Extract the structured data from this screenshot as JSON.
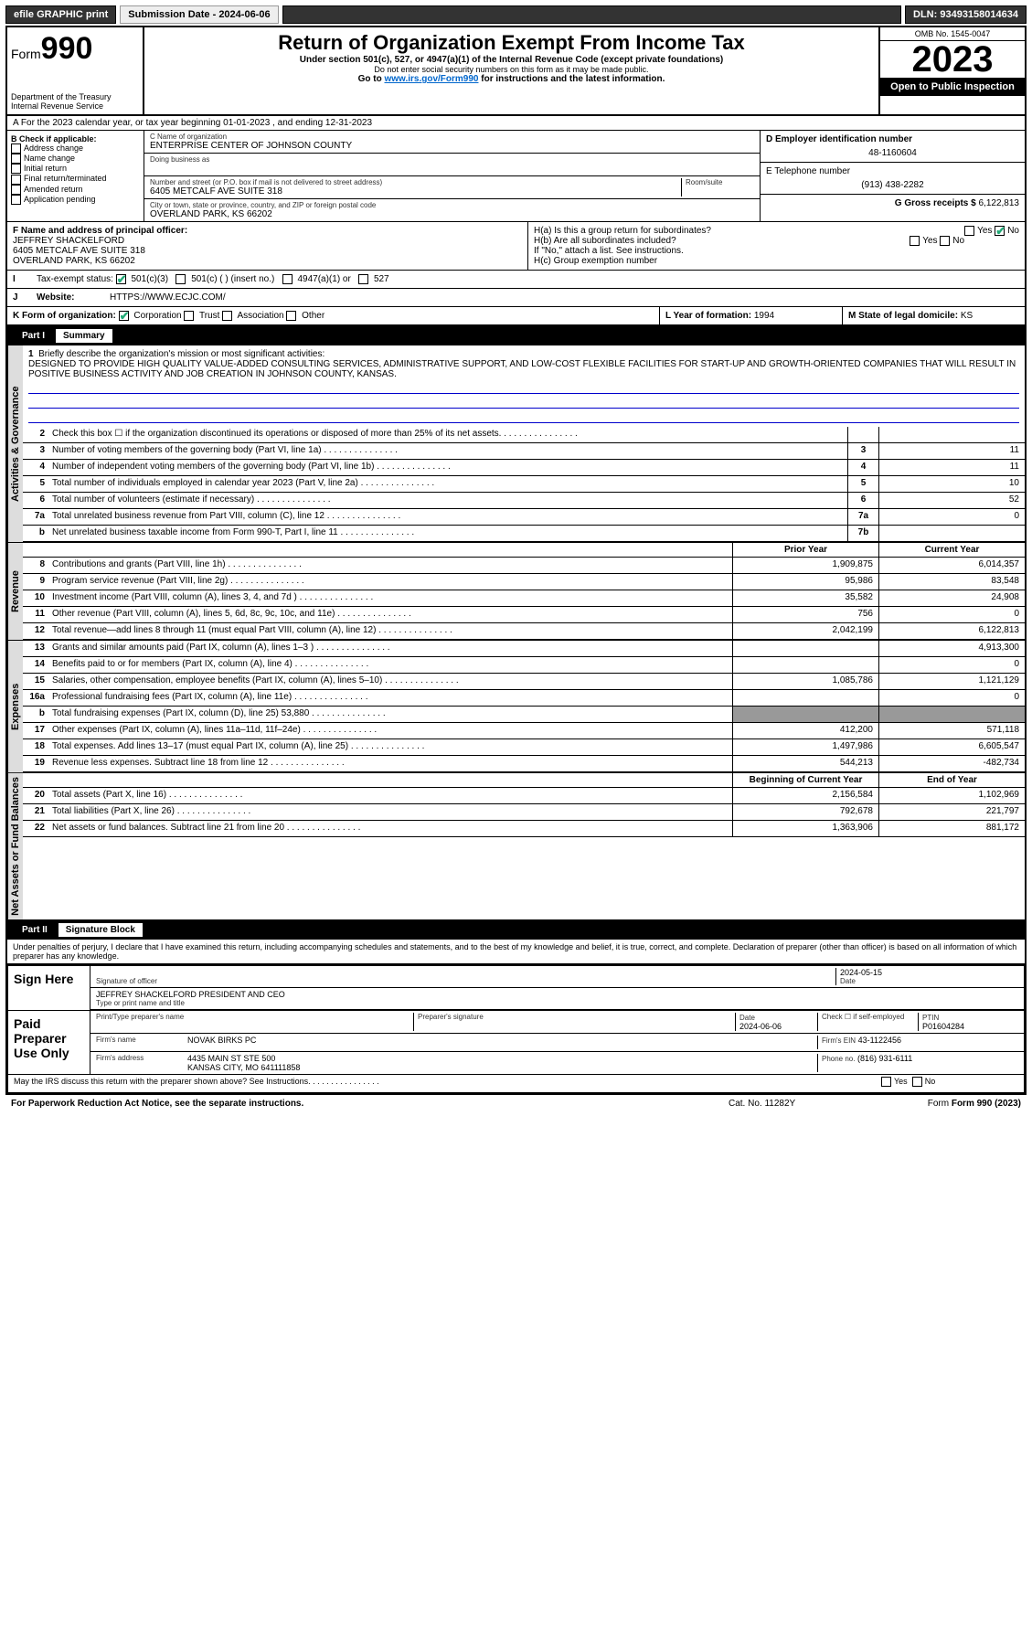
{
  "topbar": {
    "efile": "efile GRAPHIC print",
    "submission_label": "Submission Date - 2024-06-06",
    "dln": "DLN: 93493158014634"
  },
  "header": {
    "form_word": "Form",
    "form_num": "990",
    "dept": "Department of the Treasury",
    "irs": "Internal Revenue Service",
    "title": "Return of Organization Exempt From Income Tax",
    "sub1": "Under section 501(c), 527, or 4947(a)(1) of the Internal Revenue Code (except private foundations)",
    "sub2": "Do not enter social security numbers on this form as it may be made public.",
    "sub3_pre": "Go to ",
    "sub3_link": "www.irs.gov/Form990",
    "sub3_post": " for instructions and the latest information.",
    "omb": "OMB No. 1545-0047",
    "year": "2023",
    "open": "Open to Public Inspection"
  },
  "row_a": "A For the 2023 calendar year, or tax year beginning 01-01-2023    , and ending 12-31-2023",
  "box_b": {
    "label": "B Check if applicable:",
    "opts": [
      "Address change",
      "Name change",
      "Initial return",
      "Final return/terminated",
      "Amended return",
      "Application pending"
    ]
  },
  "box_c": {
    "name_lbl": "C Name of organization",
    "name": "ENTERPRISE CENTER OF JOHNSON COUNTY",
    "dba_lbl": "Doing business as",
    "addr_lbl": "Number and street (or P.O. box if mail is not delivered to street address)",
    "room_lbl": "Room/suite",
    "addr": "6405 METCALF AVE SUITE 318",
    "city_lbl": "City or town, state or province, country, and ZIP or foreign postal code",
    "city": "OVERLAND PARK, KS  66202"
  },
  "box_d": {
    "ein_lbl": "D Employer identification number",
    "ein": "48-1160604",
    "tel_lbl": "E Telephone number",
    "tel": "(913) 438-2282",
    "gross_lbl": "G Gross receipts $",
    "gross": "6,122,813"
  },
  "box_f": {
    "lbl": "F  Name and address of principal officer:",
    "name": "JEFFREY SHACKELFORD",
    "addr1": "6405 METCALF AVE SUITE 318",
    "addr2": "OVERLAND PARK, KS  66202"
  },
  "box_h": {
    "ha": "H(a)  Is this a group return for subordinates?",
    "hb": "H(b)  Are all subordinates included?",
    "hb_note": "If \"No,\" attach a list. See instructions.",
    "hc": "H(c)  Group exemption number",
    "yes": "Yes",
    "no": "No"
  },
  "row_i": {
    "lbl": "Tax-exempt status:",
    "o1": "501(c)(3)",
    "o2": "501(c) (  ) (insert no.)",
    "o3": "4947(a)(1) or",
    "o4": "527"
  },
  "row_j": {
    "lbl": "Website:",
    "val": "HTTPS://WWW.ECJC.COM/"
  },
  "row_k": {
    "lbl": "K Form of organization:",
    "o1": "Corporation",
    "o2": "Trust",
    "o3": "Association",
    "o4": "Other",
    "l_lbl": "L Year of formation:",
    "l_val": "1994",
    "m_lbl": "M State of legal domicile:",
    "m_val": "KS"
  },
  "part1": {
    "num": "Part I",
    "title": "Summary"
  },
  "mission": {
    "n": "1",
    "lbl": "Briefly describe the organization's mission or most significant activities:",
    "text": "DESIGNED TO PROVIDE HIGH QUALITY VALUE-ADDED CONSULTING SERVICES, ADMINISTRATIVE SUPPORT, AND LOW-COST FLEXIBLE FACILITIES FOR START-UP AND GROWTH-ORIENTED COMPANIES THAT WILL RESULT IN POSITIVE BUSINESS ACTIVITY AND JOB CREATION IN JOHNSON COUNTY, KANSAS."
  },
  "vtabs": {
    "gov": "Activities & Governance",
    "rev": "Revenue",
    "exp": "Expenses",
    "net": "Net Assets or Fund Balances"
  },
  "lines_gov": [
    {
      "n": "2",
      "t": "Check this box ☐ if the organization discontinued its operations or disposed of more than 25% of its net assets.",
      "bx": "",
      "v": ""
    },
    {
      "n": "3",
      "t": "Number of voting members of the governing body (Part VI, line 1a)",
      "bx": "3",
      "v": "11"
    },
    {
      "n": "4",
      "t": "Number of independent voting members of the governing body (Part VI, line 1b)",
      "bx": "4",
      "v": "11"
    },
    {
      "n": "5",
      "t": "Total number of individuals employed in calendar year 2023 (Part V, line 2a)",
      "bx": "5",
      "v": "10"
    },
    {
      "n": "6",
      "t": "Total number of volunteers (estimate if necessary)",
      "bx": "6",
      "v": "52"
    },
    {
      "n": "7a",
      "t": "Total unrelated business revenue from Part VIII, column (C), line 12",
      "bx": "7a",
      "v": "0"
    },
    {
      "n": "b",
      "t": "Net unrelated business taxable income from Form 990-T, Part I, line 11",
      "bx": "7b",
      "v": ""
    }
  ],
  "col_hdr": {
    "prior": "Prior Year",
    "curr": "Current Year",
    "boy": "Beginning of Current Year",
    "eoy": "End of Year"
  },
  "lines_rev": [
    {
      "n": "8",
      "t": "Contributions and grants (Part VIII, line 1h)",
      "p": "1,909,875",
      "c": "6,014,357"
    },
    {
      "n": "9",
      "t": "Program service revenue (Part VIII, line 2g)",
      "p": "95,986",
      "c": "83,548"
    },
    {
      "n": "10",
      "t": "Investment income (Part VIII, column (A), lines 3, 4, and 7d )",
      "p": "35,582",
      "c": "24,908"
    },
    {
      "n": "11",
      "t": "Other revenue (Part VIII, column (A), lines 5, 6d, 8c, 9c, 10c, and 11e)",
      "p": "756",
      "c": "0"
    },
    {
      "n": "12",
      "t": "Total revenue—add lines 8 through 11 (must equal Part VIII, column (A), line 12)",
      "p": "2,042,199",
      "c": "6,122,813"
    }
  ],
  "lines_exp": [
    {
      "n": "13",
      "t": "Grants and similar amounts paid (Part IX, column (A), lines 1–3 )",
      "p": "",
      "c": "4,913,300"
    },
    {
      "n": "14",
      "t": "Benefits paid to or for members (Part IX, column (A), line 4)",
      "p": "",
      "c": "0"
    },
    {
      "n": "15",
      "t": "Salaries, other compensation, employee benefits (Part IX, column (A), lines 5–10)",
      "p": "1,085,786",
      "c": "1,121,129"
    },
    {
      "n": "16a",
      "t": "Professional fundraising fees (Part IX, column (A), line 11e)",
      "p": "",
      "c": "0"
    },
    {
      "n": "b",
      "t": "Total fundraising expenses (Part IX, column (D), line 25) 53,880",
      "p": "grey",
      "c": "grey"
    },
    {
      "n": "17",
      "t": "Other expenses (Part IX, column (A), lines 11a–11d, 11f–24e)",
      "p": "412,200",
      "c": "571,118"
    },
    {
      "n": "18",
      "t": "Total expenses. Add lines 13–17 (must equal Part IX, column (A), line 25)",
      "p": "1,497,986",
      "c": "6,605,547"
    },
    {
      "n": "19",
      "t": "Revenue less expenses. Subtract line 18 from line 12",
      "p": "544,213",
      "c": "-482,734"
    }
  ],
  "lines_net": [
    {
      "n": "20",
      "t": "Total assets (Part X, line 16)",
      "p": "2,156,584",
      "c": "1,102,969"
    },
    {
      "n": "21",
      "t": "Total liabilities (Part X, line 26)",
      "p": "792,678",
      "c": "221,797"
    },
    {
      "n": "22",
      "t": "Net assets or fund balances. Subtract line 21 from line 20",
      "p": "1,363,906",
      "c": "881,172"
    }
  ],
  "part2": {
    "num": "Part II",
    "title": "Signature Block"
  },
  "perjury": "Under penalties of perjury, I declare that I have examined this return, including accompanying schedules and statements, and to the best of my knowledge and belief, it is true, correct, and complete. Declaration of preparer (other than officer) is based on all information of which preparer has any knowledge.",
  "sign": {
    "here_lbl": "Sign Here",
    "sig_lbl": "Signature of officer",
    "date_lbl": "Date",
    "date": "2024-05-15",
    "officer": "JEFFREY SHACKELFORD  PRESIDENT AND CEO",
    "type_lbl": "Type or print name and title"
  },
  "paid": {
    "lbl": "Paid Preparer Use Only",
    "name_lbl": "Print/Type preparer's name",
    "sig_lbl": "Preparer's signature",
    "date_lbl": "Date",
    "date": "2024-06-06",
    "chk_lbl": "Check ☐ if self-employed",
    "ptin_lbl": "PTIN",
    "ptin": "P01604284",
    "firm_lbl": "Firm's name",
    "firm": "NOVAK BIRKS PC",
    "ein_lbl": "Firm's EIN",
    "ein": "43-1122456",
    "addr_lbl": "Firm's address",
    "addr1": "4435 MAIN ST STE 500",
    "addr2": "KANSAS CITY, MO  641111858",
    "phone_lbl": "Phone no.",
    "phone": "(816) 931-6111"
  },
  "discuss": "May the IRS discuss this return with the preparer shown above? See Instructions.",
  "footer": {
    "pra": "For Paperwork Reduction Act Notice, see the separate instructions.",
    "cat": "Cat. No. 11282Y",
    "form": "Form 990 (2023)"
  }
}
